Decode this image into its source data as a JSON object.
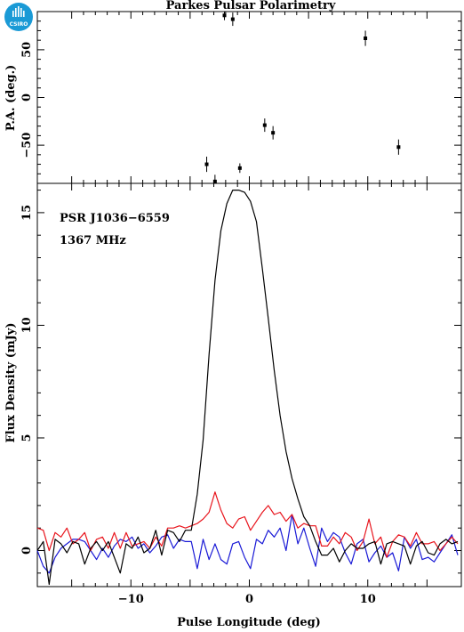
{
  "title": "Parkes Pulsar Polarimetry",
  "logo": {
    "text": "CSIRO",
    "icon": "csiro-logo-icon",
    "color": "#1a9ad6"
  },
  "chart_data": [
    {
      "type": "scatter",
      "panel": "polarization-angle",
      "title": "Parkes Pulsar Polarimetry",
      "xlabel": "",
      "ylabel": "P.A. (deg.)",
      "xlim": [
        -17.9,
        17.9
      ],
      "ylim": [
        -90,
        90
      ],
      "yticks": [
        -50,
        0,
        50
      ],
      "ytick_labels": [
        "−50",
        "0",
        "50"
      ],
      "points": [
        {
          "x": -3.6,
          "y": -70,
          "err": 8
        },
        {
          "x": -2.9,
          "y": -88,
          "err": 7
        },
        {
          "x": -2.1,
          "y": 86,
          "err": 5
        },
        {
          "x": -1.4,
          "y": 82,
          "err": 7
        },
        {
          "x": -0.8,
          "y": -74,
          "err": 5
        },
        {
          "x": 1.3,
          "y": -29,
          "err": 7
        },
        {
          "x": 2.0,
          "y": -37,
          "err": 7
        },
        {
          "x": 9.8,
          "y": 62,
          "err": 8
        },
        {
          "x": 12.6,
          "y": -52,
          "err": 8
        }
      ],
      "colors": {
        "points": "#000000"
      }
    },
    {
      "type": "line",
      "panel": "flux-profile",
      "xlabel": "Pulse Longitude (deg)",
      "ylabel": "Flux Density (mJy)",
      "xlim": [
        -17.9,
        17.9
      ],
      "ylim": [
        -1.6,
        16.3
      ],
      "xticks": [
        -10,
        0,
        10
      ],
      "xtick_labels": [
        "−10",
        "0",
        "10"
      ],
      "yticks": [
        0,
        5,
        10,
        15
      ],
      "ytick_labels": [
        "0",
        "5",
        "10",
        "15"
      ],
      "annotations": [
        "PSR J1036−6559",
        "1367 MHz"
      ],
      "x": [
        -17.9,
        -17.4,
        -16.9,
        -16.4,
        -15.9,
        -15.4,
        -14.9,
        -14.4,
        -13.9,
        -13.4,
        -12.9,
        -12.4,
        -11.9,
        -11.4,
        -10.9,
        -10.4,
        -9.9,
        -9.4,
        -8.9,
        -8.4,
        -7.9,
        -7.4,
        -6.9,
        -6.4,
        -5.9,
        -5.4,
        -4.9,
        -4.4,
        -3.9,
        -3.4,
        -2.9,
        -2.4,
        -1.9,
        -1.4,
        -0.9,
        -0.4,
        0.1,
        0.6,
        1.1,
        1.6,
        2.1,
        2.6,
        3.1,
        3.6,
        4.1,
        4.6,
        5.1,
        5.6,
        6.1,
        6.6,
        7.1,
        7.6,
        8.1,
        8.6,
        9.1,
        9.6,
        10.1,
        10.6,
        11.1,
        11.6,
        12.1,
        12.6,
        13.1,
        13.6,
        14.1,
        14.6,
        15.1,
        15.6,
        16.1,
        16.6,
        17.1,
        17.6
      ],
      "series": [
        {
          "name": "",
          "color": "#000000",
          "values": [
            0.0,
            0.4,
            -1.5,
            0.5,
            0.3,
            -0.1,
            0.4,
            0.3,
            -0.6,
            0.1,
            0.4,
            0.0,
            0.4,
            -0.3,
            -1.0,
            0.3,
            0.1,
            0.6,
            -0.1,
            0.1,
            0.9,
            -0.2,
            0.9,
            0.8,
            0.4,
            0.9,
            0.9,
            2.5,
            4.9,
            8.7,
            12.0,
            14.2,
            15.4,
            16.0,
            16.0,
            15.9,
            15.5,
            14.6,
            12.5,
            10.3,
            8.0,
            6.0,
            4.4,
            3.2,
            2.3,
            1.5,
            1.1,
            0.4,
            -0.2,
            -0.2,
            0.1,
            -0.5,
            0.0,
            0.3,
            0.1,
            0.1,
            0.3,
            0.4,
            -0.6,
            0.3,
            0.4,
            0.3,
            0.2,
            -0.6,
            0.2,
            0.4,
            -0.1,
            -0.2,
            0.3,
            0.5,
            0.3,
            0.4
          ]
        },
        {
          "name": "",
          "color": "#e8141c",
          "values": [
            1.0,
            0.9,
            0.0,
            0.8,
            0.6,
            1.0,
            0.3,
            0.5,
            0.8,
            0.0,
            0.5,
            0.6,
            0.1,
            0.8,
            0.1,
            0.8,
            0.2,
            0.3,
            0.4,
            0.1,
            0.6,
            0.2,
            1.0,
            1.0,
            1.1,
            1.0,
            1.1,
            1.2,
            1.4,
            1.7,
            2.6,
            1.8,
            1.2,
            1.0,
            1.4,
            1.5,
            0.9,
            1.3,
            1.7,
            2.0,
            1.6,
            1.7,
            1.3,
            1.6,
            1.0,
            1.2,
            1.1,
            1.1,
            0.2,
            0.2,
            0.6,
            0.3,
            0.8,
            0.6,
            0.0,
            0.4,
            1.4,
            0.3,
            0.6,
            -0.3,
            0.4,
            0.7,
            0.6,
            0.2,
            0.8,
            0.3,
            0.3,
            0.4,
            0.0,
            0.3,
            0.6,
            0.3
          ]
        },
        {
          "name": "",
          "color": "#1a1ad6",
          "values": [
            0.0,
            -0.7,
            -1.0,
            -0.3,
            0.1,
            0.3,
            0.5,
            0.5,
            0.4,
            0.0,
            -0.4,
            0.1,
            -0.3,
            0.2,
            0.5,
            0.4,
            0.6,
            0.1,
            0.3,
            -0.1,
            0.2,
            0.6,
            0.7,
            0.1,
            0.5,
            0.4,
            0.4,
            -0.8,
            0.5,
            -0.4,
            0.3,
            -0.4,
            -0.6,
            0.3,
            0.4,
            -0.3,
            -0.8,
            0.5,
            0.3,
            0.9,
            0.6,
            1.0,
            0.0,
            1.6,
            0.3,
            1.0,
            0.1,
            -0.7,
            1.0,
            0.4,
            0.8,
            0.6,
            -0.1,
            -0.6,
            0.3,
            0.5,
            -0.5,
            -0.1,
            0.2,
            -0.3,
            -0.1,
            -0.9,
            0.6,
            0.1,
            0.5,
            -0.4,
            -0.3,
            -0.5,
            -0.1,
            0.3,
            0.7,
            -0.2
          ]
        }
      ]
    }
  ]
}
